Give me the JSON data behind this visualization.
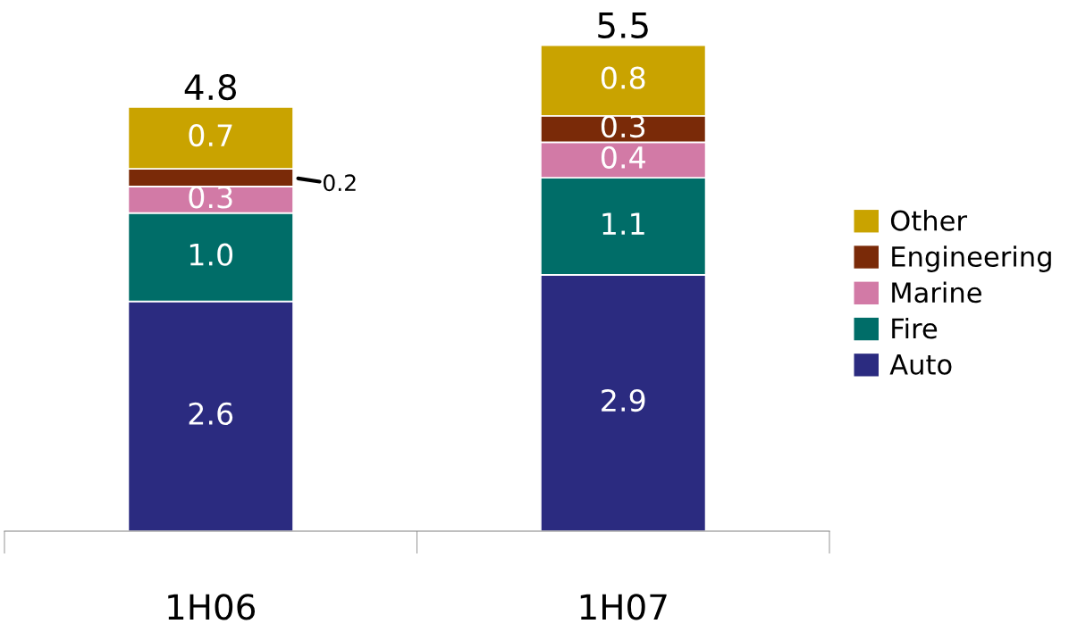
{
  "chart_data": {
    "type": "bar",
    "stacked": true,
    "categories": [
      "1H06",
      "1H07"
    ],
    "series": [
      {
        "name": "Auto",
        "color": "#2b2b80",
        "values": [
          2.6,
          2.9
        ],
        "value_labels": [
          "2.6",
          "2.9"
        ]
      },
      {
        "name": "Fire",
        "color": "#006d68",
        "values": [
          1.0,
          1.1
        ],
        "value_labels": [
          "1.0",
          "1.1"
        ]
      },
      {
        "name": "Marine",
        "color": "#d27aa6",
        "values": [
          0.3,
          0.4
        ],
        "value_labels": [
          "0.3",
          "0.4"
        ]
      },
      {
        "name": "Engineering",
        "color": "#7a2a08",
        "values": [
          0.2,
          0.3
        ],
        "value_labels": [
          "0.2",
          "0.3"
        ]
      },
      {
        "name": "Other",
        "color": "#c9a300",
        "values": [
          0.7,
          0.8
        ],
        "value_labels": [
          "0.7",
          "0.8"
        ]
      }
    ],
    "totals": [
      "4.8",
      "5.5"
    ],
    "legend": "right"
  }
}
